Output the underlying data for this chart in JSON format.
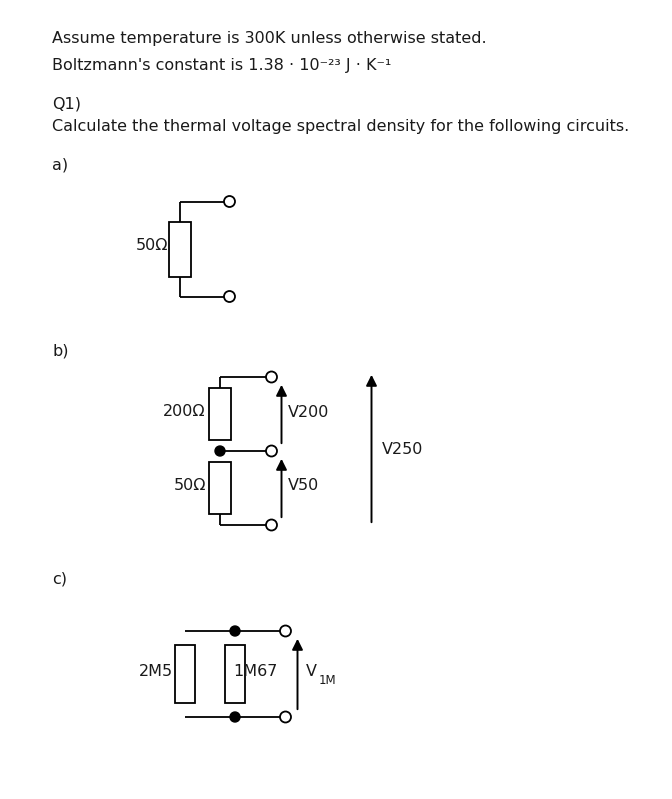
{
  "title_line1": "Assume temperature is 300K unless otherwise stated.",
  "title_line2": "Boltzmann's constant is 1.38 · 10⁻²³ J · K⁻¹",
  "q1_line1": "Q1)",
  "q1_line2": "Calculate the thermal voltage spectral density for the following circuits.",
  "label_a": "a)",
  "label_b": "b)",
  "label_c": "c)",
  "bg_color": "#ffffff",
  "line_color": "#000000",
  "text_color": "#1a1a1a",
  "font_size": 11.5
}
